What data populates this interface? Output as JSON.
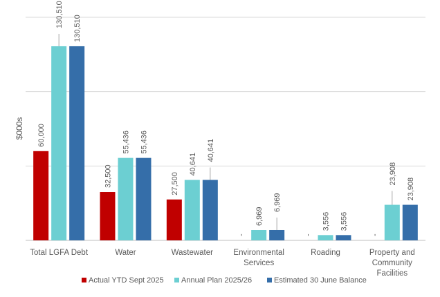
{
  "chart_data": {
    "type": "bar",
    "title": "",
    "xlabel": "",
    "ylabel": "$000s",
    "ylim": [
      0,
      150000
    ],
    "grid": true,
    "y_tick_labels_shown": false,
    "legend_position": "bottom",
    "categories": [
      [
        "Total LGFA Debt"
      ],
      [
        "Water"
      ],
      [
        "Wastewater"
      ],
      [
        "Environmental",
        "Services"
      ],
      [
        "Roading"
      ],
      [
        "Property and",
        "Community",
        "Facilities"
      ]
    ],
    "series": [
      {
        "name": "Actual YTD Sept 2025",
        "color": "#C00000",
        "values": [
          60000,
          32500,
          27500,
          0,
          0,
          0
        ],
        "labels": [
          "60,000",
          "32,500",
          "27,500",
          "-",
          "-",
          "-"
        ]
      },
      {
        "name": "Annual Plan 2025/26",
        "color": "#6CCFD2",
        "values": [
          130510,
          55436,
          40641,
          6969,
          3556,
          23908
        ],
        "labels": [
          "130,510",
          "55,436",
          "40,641",
          "6,969",
          "3,556",
          "23,908"
        ]
      },
      {
        "name": "Estimated 30 June Balance",
        "color": "#356EA9",
        "values": [
          130510,
          55436,
          40641,
          6969,
          3556,
          23908
        ],
        "labels": [
          "130,510",
          "55,436",
          "40,641",
          "6,969",
          "3,556",
          "23,908"
        ]
      }
    ]
  }
}
